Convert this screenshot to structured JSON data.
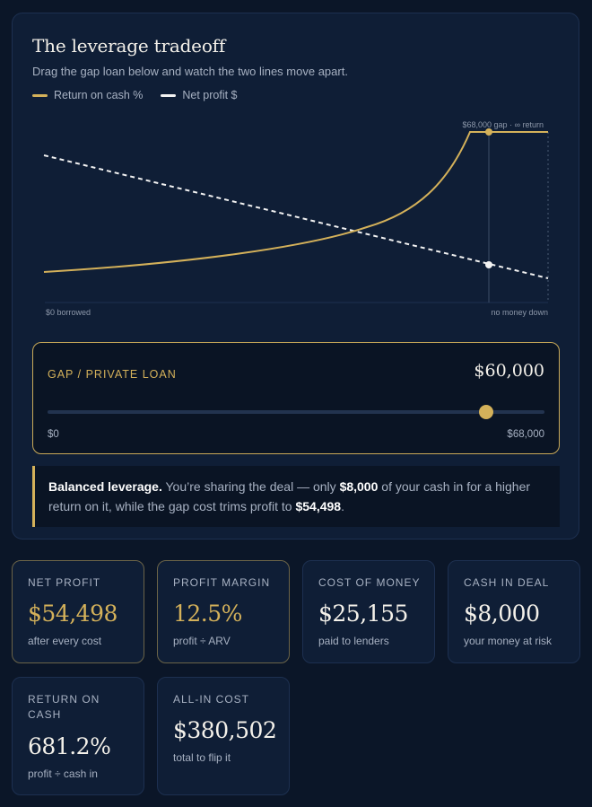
{
  "panel": {
    "title": "The leverage tradeoff",
    "subtitle": "Drag the gap loan below and watch the two lines move apart.",
    "legend": [
      {
        "label": "Return on cash %",
        "color": "#d4b15a"
      },
      {
        "label": "Net profit $",
        "color": "#f2f2f2"
      }
    ]
  },
  "chart_data": {
    "type": "line",
    "x_min_label": "$0 borrowed",
    "x_max_label": "no money down",
    "marker_label": "$68,000 gap · ∞ return",
    "series": [
      {
        "name": "Return on cash %",
        "style": "solid",
        "color": "#d4b15a"
      },
      {
        "name": "Net profit $",
        "style": "dashed",
        "color": "#f2f2f2"
      }
    ],
    "selected_gap": 60000,
    "max_gap": 68000
  },
  "slider": {
    "label": "GAP / PRIVATE LOAN",
    "value": "$60,000",
    "min_label": "$0",
    "max_label": "$68,000",
    "fraction": 0.882
  },
  "callout": {
    "lead": "Balanced leverage.",
    "part1": " You’re sharing the deal — only ",
    "cash": "$8,000",
    "part2": " of your cash in for a higher return on it, while the gap cost trims profit to ",
    "profit": "$54,498",
    "end": "."
  },
  "stats": [
    {
      "label": "Net profit",
      "value": "$54,498",
      "note": "after every cost",
      "highlight": true
    },
    {
      "label": "Profit margin",
      "value": "12.5%",
      "note": "profit ÷ ARV",
      "highlight": true
    },
    {
      "label": "Cost of money",
      "value": "$25,155",
      "note": "paid to lenders",
      "highlight": false
    },
    {
      "label": "Cash in deal",
      "value": "$8,000",
      "note": "your money at risk",
      "highlight": false
    },
    {
      "label": "Return on cash",
      "value": "681.2%",
      "note": "profit ÷ cash in",
      "highlight": false
    },
    {
      "label": "All-in cost",
      "value": "$380,502",
      "note": "total to flip it",
      "highlight": false
    }
  ],
  "colors": {
    "accent": "#d4b15a",
    "background": "#0b1628",
    "card": "#0f1e36"
  }
}
